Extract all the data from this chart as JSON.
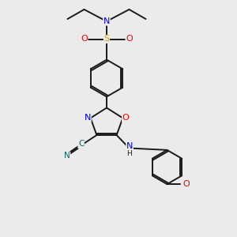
{
  "bg_color": "#ebebeb",
  "bond_color": "#1a1a1a",
  "N_color": "#0000ff",
  "O_color": "#ff0000",
  "S_color": "#ccaa00",
  "CN_color": "#006666",
  "lw": 1.4,
  "xlim": [
    0,
    10
  ],
  "ylim": [
    0,
    10
  ]
}
